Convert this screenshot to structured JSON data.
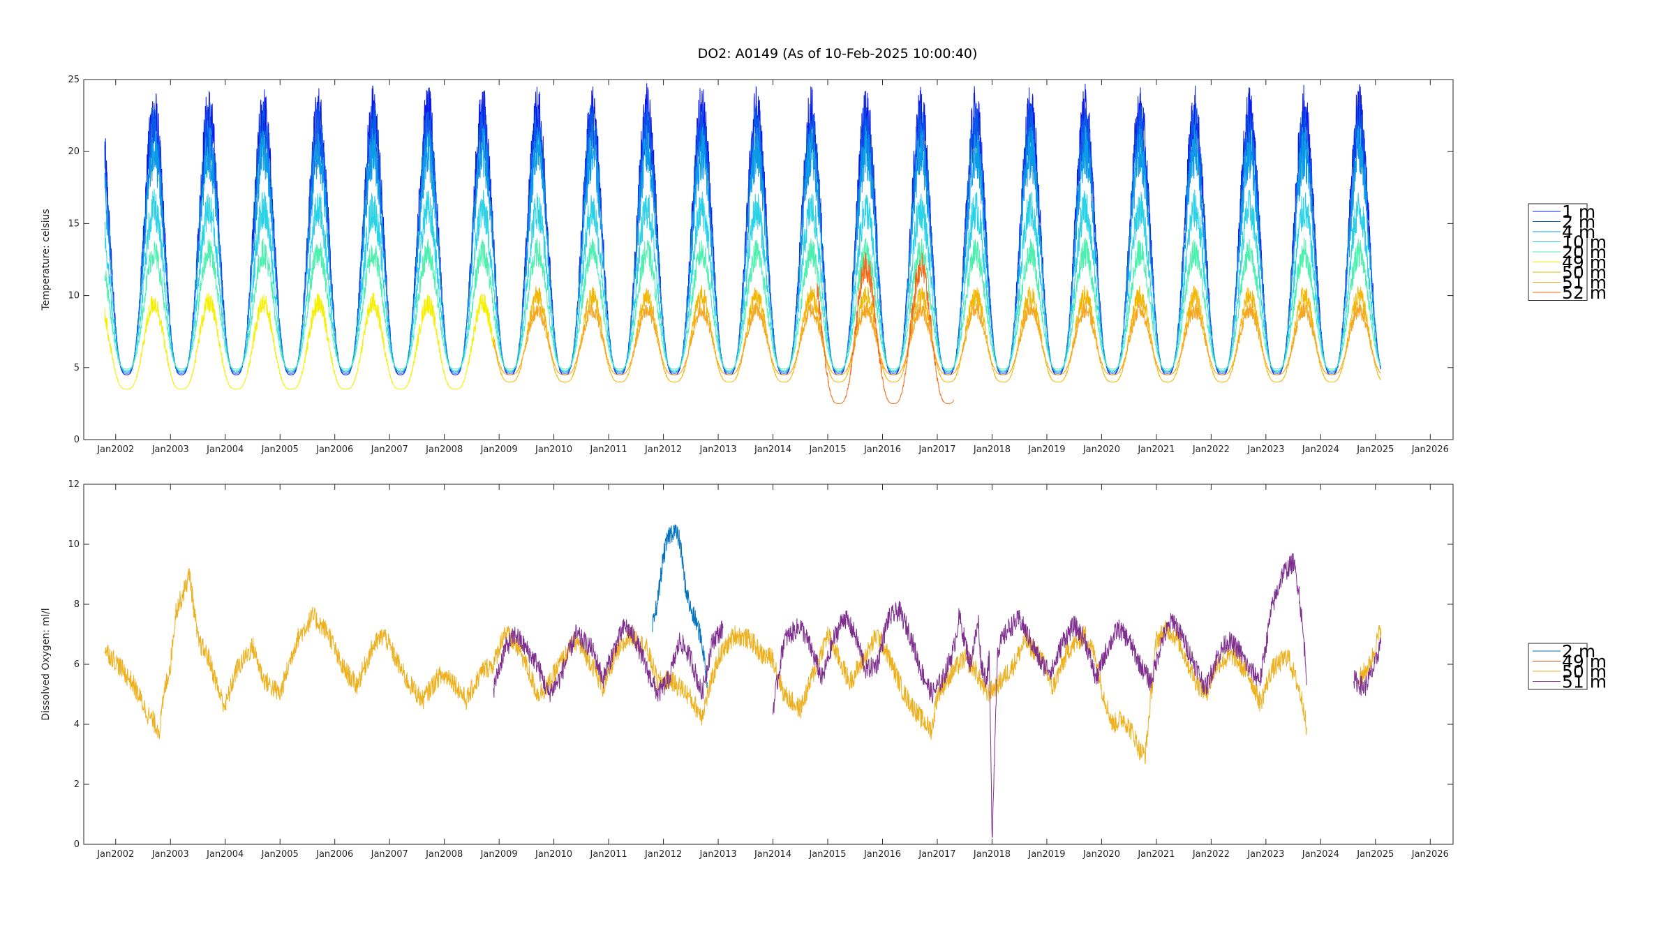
{
  "figure": {
    "title": "DO2: A0149 (As of 10-Feb-2025 10:00:40)"
  },
  "chart_data": [
    {
      "type": "line",
      "ylabel": "Temperature:  celsius",
      "xlabel": "",
      "xlim": [
        "2001-06-01",
        "2026-06-01"
      ],
      "ylim": [
        0,
        25
      ],
      "yticks": [
        0,
        5,
        10,
        15,
        20,
        25
      ],
      "xticks": [
        "Jan2002",
        "Jan2003",
        "Jan2004",
        "Jan2005",
        "Jan2006",
        "Jan2007",
        "Jan2008",
        "Jan2009",
        "Jan2010",
        "Jan2011",
        "Jan2012",
        "Jan2013",
        "Jan2014",
        "Jan2015",
        "Jan2016",
        "Jan2017",
        "Jan2018",
        "Jan2019",
        "Jan2020",
        "Jan2021",
        "Jan2022",
        "Jan2023",
        "Jan2024",
        "Jan2025",
        "Jan2026"
      ],
      "grid": false,
      "legend_position": "right",
      "series": [
        {
          "name": "1 m",
          "color": "#0b1ae6",
          "years": [
            2001.8,
            2025.1
          ],
          "amplitude_max": 22.5,
          "amplitude_min": 4.5
        },
        {
          "name": "2 m",
          "color": "#0a58e8",
          "years": [
            2001.8,
            2025.1
          ],
          "amplitude_max": 21.5,
          "amplitude_min": 4.6
        },
        {
          "name": "4 m",
          "color": "#0c9be6",
          "years": [
            2001.8,
            2025.1
          ],
          "amplitude_max": 20.0,
          "amplitude_min": 4.7
        },
        {
          "name": "10 m",
          "color": "#29d2e6",
          "years": [
            2001.8,
            2025.1
          ],
          "amplitude_max": 16.0,
          "amplitude_min": 4.8
        },
        {
          "name": "20 m",
          "color": "#4ef0b0",
          "years": [
            2001.8,
            2025.1
          ],
          "amplitude_max": 13.0,
          "amplitude_min": 4.9
        },
        {
          "name": "49 m",
          "color": "#f5f000",
          "years": [
            2001.8,
            2008.9
          ],
          "amplitude_max": 9.5,
          "amplitude_min": 3.5
        },
        {
          "name": "50 m",
          "color": "#f2b705",
          "years": [
            2008.9,
            2025.1
          ],
          "amplitude_max": 10.0,
          "amplitude_min": 4.0
        },
        {
          "name": "51 m",
          "color": "#f5a623",
          "years": [
            2008.9,
            2025.1
          ],
          "amplitude_max": 9.0,
          "amplitude_min": 4.5
        },
        {
          "name": "52 m",
          "color": "#f26b1a",
          "years": [
            2014.8,
            2017.3
          ],
          "amplitude_max": 12.0,
          "amplitude_min": 2.5
        }
      ]
    },
    {
      "type": "line",
      "ylabel": "Dissolved Oxygen:  ml/l",
      "xlabel": "",
      "xlim": [
        "2001-06-01",
        "2026-06-01"
      ],
      "ylim": [
        0,
        12
      ],
      "yticks": [
        0,
        2,
        4,
        6,
        8,
        10,
        12
      ],
      "xticks": [
        "Jan2002",
        "Jan2003",
        "Jan2004",
        "Jan2005",
        "Jan2006",
        "Jan2007",
        "Jan2008",
        "Jan2009",
        "Jan2010",
        "Jan2011",
        "Jan2012",
        "Jan2013",
        "Jan2014",
        "Jan2015",
        "Jan2016",
        "Jan2017",
        "Jan2018",
        "Jan2019",
        "Jan2020",
        "Jan2021",
        "Jan2022",
        "Jan2023",
        "Jan2024",
        "Jan2025",
        "Jan2026"
      ],
      "grid": false,
      "legend_position": "right",
      "series": [
        {
          "name": "2 m",
          "color": "#0072bd",
          "x": [
            2011.8,
            2011.9,
            2012.0,
            2012.1,
            2012.2,
            2012.3,
            2012.4,
            2012.5,
            2012.6,
            2012.7,
            2012.8
          ],
          "y": [
            7.2,
            8.2,
            9.6,
            10.3,
            10.5,
            10.1,
            8.6,
            7.8,
            7.4,
            6.8,
            5.4
          ]
        },
        {
          "name": "49 m",
          "color": "#d95319",
          "x": [],
          "y": []
        },
        {
          "name": "50 m",
          "color": "#edb120",
          "x": [
            2001.8,
            2002.0,
            2002.3,
            2002.6,
            2002.8,
            2002.9,
            2003.0,
            2003.1,
            2003.2,
            2003.35,
            2003.5,
            2003.7,
            2003.9,
            2004.0,
            2004.2,
            2004.5,
            2004.7,
            2005.0,
            2005.3,
            2005.6,
            2005.9,
            2006.1,
            2006.4,
            2006.7,
            2006.9,
            2007.0,
            2007.3,
            2007.6,
            2007.9,
            2008.1,
            2008.4,
            2008.7,
            2008.9,
            2009.1,
            2009.4,
            2009.7,
            2009.9,
            2010.1,
            2010.4,
            2010.7,
            2010.9,
            2011.1,
            2011.4,
            2011.7,
            2011.9,
            2012.1,
            2012.4,
            2012.7,
            2013.0,
            2013.3,
            2013.6,
            2013.8,
            2014.0,
            2014.2,
            2014.5,
            2014.8,
            2015.0,
            2015.2,
            2015.4,
            2015.7,
            2015.9,
            2016.1,
            2016.4,
            2016.7,
            2016.9,
            2017.0,
            2017.3,
            2017.5,
            2017.7,
            2017.9,
            2018.1,
            2018.4,
            2018.6,
            2018.9,
            2019.1,
            2019.4,
            2019.7,
            2019.9,
            2020.0,
            2020.2,
            2020.4,
            2020.6,
            2020.7,
            2020.8,
            2021.0,
            2021.2,
            2021.4,
            2021.7,
            2021.9,
            2022.1,
            2022.4,
            2022.7,
            2022.9,
            2023.1,
            2023.4,
            2023.6,
            2023.7,
            2023.75,
            2024.7,
            2024.9,
            2025.1
          ],
          "y": [
            6.5,
            6.1,
            5.4,
            4.3,
            3.8,
            5.2,
            6.0,
            7.8,
            8.2,
            9.0,
            6.8,
            6.2,
            5.0,
            4.6,
            5.8,
            6.6,
            5.5,
            5.0,
            6.8,
            7.6,
            7.0,
            6.0,
            5.3,
            6.6,
            7.0,
            6.6,
            5.5,
            4.8,
            5.6,
            5.6,
            4.8,
            5.8,
            6.0,
            7.1,
            6.4,
            5.0,
            5.3,
            6.0,
            6.8,
            6.0,
            5.2,
            6.2,
            7.0,
            6.5,
            5.4,
            5.5,
            5.1,
            4.3,
            6.2,
            7.0,
            6.8,
            6.3,
            6.2,
            5.0,
            4.5,
            6.0,
            7.0,
            6.2,
            5.4,
            6.3,
            7.0,
            6.3,
            5.0,
            4.2,
            3.8,
            5.0,
            5.8,
            6.2,
            5.8,
            5.0,
            5.3,
            6.0,
            6.8,
            6.2,
            5.2,
            6.5,
            7.0,
            6.2,
            5.2,
            4.0,
            4.2,
            3.6,
            3.1,
            3.0,
            6.8,
            7.2,
            6.8,
            5.5,
            5.0,
            6.0,
            6.3,
            5.6,
            4.7,
            5.8,
            6.3,
            5.2,
            4.5,
            3.5,
            5.5,
            6.0,
            7.2
          ]
        },
        {
          "name": "51 m",
          "color": "#7e2f8e",
          "x": [
            2008.9,
            2009.1,
            2009.3,
            2009.5,
            2009.7,
            2009.9,
            2010.1,
            2010.4,
            2010.7,
            2010.9,
            2011.1,
            2011.3,
            2011.5,
            2011.7,
            2011.9,
            2012.1,
            2012.3,
            2012.5,
            2012.7,
            2012.9,
            2013.1,
            2014.0,
            2014.2,
            2014.5,
            2014.7,
            2014.9,
            2015.1,
            2015.3,
            2015.5,
            2015.7,
            2015.9,
            2016.1,
            2016.3,
            2016.5,
            2016.7,
            2016.9,
            2017.1,
            2017.3,
            2017.4,
            2017.5,
            2017.6,
            2017.75,
            2017.8,
            2017.9,
            2017.95,
            2018.0,
            2018.1,
            2018.3,
            2018.5,
            2018.7,
            2018.9,
            2019.1,
            2019.3,
            2019.5,
            2019.7,
            2019.9,
            2020.1,
            2020.3,
            2020.5,
            2020.7,
            2020.9,
            2021.1,
            2021.3,
            2021.5,
            2021.7,
            2021.9,
            2022.1,
            2022.3,
            2022.5,
            2022.7,
            2022.9,
            2023.1,
            2023.3,
            2023.5,
            2023.6,
            2023.7,
            2023.75,
            2024.6,
            2024.8,
            2025.0,
            2025.1
          ],
          "y": [
            5.2,
            6.5,
            7.0,
            6.5,
            6.0,
            5.0,
            5.5,
            7.0,
            6.5,
            5.5,
            6.5,
            7.3,
            6.8,
            5.8,
            5.0,
            5.5,
            6.8,
            6.2,
            5.0,
            6.8,
            7.2,
            4.5,
            6.8,
            7.3,
            6.5,
            5.5,
            6.8,
            7.6,
            7.0,
            5.8,
            6.0,
            7.5,
            7.8,
            7.0,
            5.8,
            5.0,
            5.5,
            6.5,
            7.6,
            6.8,
            6.0,
            7.4,
            6.0,
            5.5,
            6.2,
            0.2,
            6.5,
            7.2,
            7.5,
            6.8,
            6.0,
            5.8,
            6.8,
            7.3,
            6.8,
            5.5,
            6.5,
            7.2,
            6.8,
            6.0,
            5.4,
            6.8,
            7.5,
            6.8,
            6.0,
            5.2,
            6.2,
            6.8,
            6.5,
            5.8,
            5.5,
            7.8,
            9.0,
            9.4,
            8.5,
            6.6,
            5.5,
            5.5,
            5.2,
            6.0,
            6.8
          ]
        }
      ]
    }
  ]
}
